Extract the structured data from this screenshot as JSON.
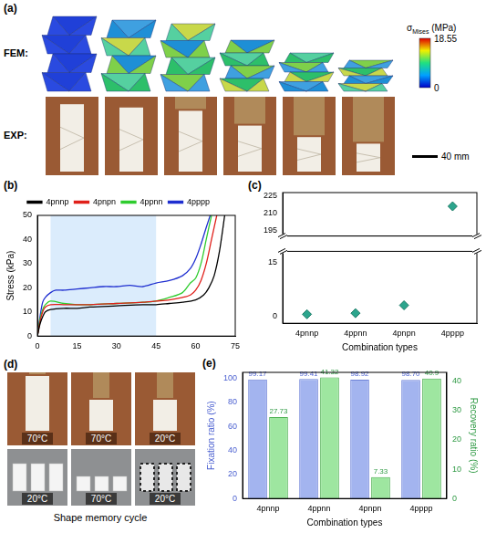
{
  "panel_a": {
    "label": "(a)",
    "rows": [
      "FEM:",
      "EXP:"
    ],
    "colorbar": {
      "symbol": "σ",
      "subscript": "Mises",
      "unit": "(MPa)",
      "range": [
        0,
        18.55
      ],
      "ticks": [
        0,
        18.55
      ]
    },
    "scale_bar": "40 mm"
  },
  "chart_data": [
    {
      "panel": "(b)",
      "type": "line",
      "series": [
        {
          "name": "4pnnp",
          "color": "#000000",
          "x": [
            0,
            1,
            2,
            3,
            5,
            10,
            15,
            20,
            30,
            40,
            45,
            50,
            55,
            60,
            63,
            65,
            67,
            69,
            71
          ],
          "values": [
            0,
            5,
            8,
            10,
            11,
            11.5,
            11.5,
            12,
            12.5,
            13,
            13,
            13.5,
            14,
            15,
            17,
            20,
            25,
            35,
            50
          ]
        },
        {
          "name": "4pnpn",
          "color": "#e0201b",
          "x": [
            0,
            1,
            2,
            3,
            5,
            10,
            15,
            20,
            30,
            40,
            45,
            50,
            55,
            58,
            60,
            62,
            64,
            66,
            68
          ],
          "values": [
            0,
            6,
            10,
            12,
            13,
            13,
            13,
            13,
            13.5,
            14,
            14.5,
            15,
            16,
            17,
            19,
            23,
            30,
            40,
            50
          ]
        },
        {
          "name": "4ppnn",
          "color": "#2ecc2e",
          "x": [
            0,
            1,
            2,
            3,
            5,
            10,
            15,
            20,
            30,
            40,
            45,
            50,
            55,
            58,
            60,
            62,
            64,
            66
          ],
          "values": [
            0,
            7,
            11,
            13,
            14.5,
            13.5,
            13,
            13,
            13.5,
            14,
            14.5,
            16,
            18,
            22,
            24,
            30,
            40,
            50
          ]
        },
        {
          "name": "4pppp",
          "color": "#1f2fd0",
          "x": [
            0,
            1,
            2,
            3,
            5,
            7,
            10,
            15,
            20,
            25,
            30,
            35,
            40,
            45,
            50,
            55,
            58,
            60,
            62,
            64,
            65.5
          ],
          "values": [
            0,
            8,
            14,
            16,
            18,
            19,
            19,
            19.5,
            20,
            20.5,
            20.5,
            21,
            20.5,
            22,
            23,
            25,
            28,
            32,
            38,
            45,
            50
          ]
        }
      ],
      "xlim": [
        0,
        75
      ],
      "xticks": [
        0,
        15,
        30,
        45,
        60,
        75
      ],
      "ylim": [
        0,
        50
      ],
      "yticks": [
        0,
        10,
        20,
        30,
        40,
        50
      ],
      "y_label": "Stress (kPa)",
      "highlight_x": [
        5,
        45
      ],
      "legend": "top"
    },
    {
      "panel": "(c)",
      "type": "scatter",
      "categories": [
        "4pnnp",
        "4ppnn",
        "4pnpn",
        "4pppp"
      ],
      "values": [
        null,
        null,
        null,
        216
      ],
      "color": "#2ca58d",
      "marker": "diamond",
      "ylim": [
        190,
        228
      ],
      "yticks": [
        195,
        210,
        225
      ],
      "tick_labels": "y"
    },
    {
      "type": "scatter",
      "categories": [
        "4pnnp",
        "4ppnn",
        "4pnpn",
        "4pppp"
      ],
      "values": [
        0.5,
        0.8,
        3,
        null
      ],
      "color": "#2ca58d",
      "marker": "diamond",
      "ylim": [
        -2,
        18
      ],
      "yticks": [
        0,
        15
      ],
      "x_label": "Combination types"
    },
    {
      "panel": "(e)",
      "type": "bar",
      "categories": [
        "4pnnp",
        "4ppnn",
        "4pnpn",
        "4pppp"
      ],
      "series": [
        {
          "color": "#a3b4ef",
          "values": [
            99.17,
            99.41,
            98.92,
            98.7
          ],
          "value_labels": [
            "99.17",
            "99.41",
            "98.92",
            "98.70"
          ]
        },
        {
          "color": "#9ee6a0",
          "axis": "y2",
          "values": [
            27.73,
            41.32,
            7.33,
            40.9
          ]
        }
      ],
      "ylim": [
        0,
        105
      ],
      "yticks": [
        0,
        20,
        40,
        60,
        80,
        100
      ],
      "y2lim": [
        0,
        43
      ],
      "y2ticks": [
        0,
        10,
        20,
        30,
        40
      ],
      "y_label": "Fixation ratio (%)",
      "y2_label": "Recovery ratio (%)",
      "x_label": "Combination types",
      "data_labels": true
    }
  ],
  "panel_d": {
    "label": "(d)",
    "top_labels": [
      "70°C",
      "70°C",
      "20°C"
    ],
    "bottom_labels": [
      "20°C",
      "70°C",
      "20°C"
    ],
    "caption": "Shape memory cycle"
  }
}
